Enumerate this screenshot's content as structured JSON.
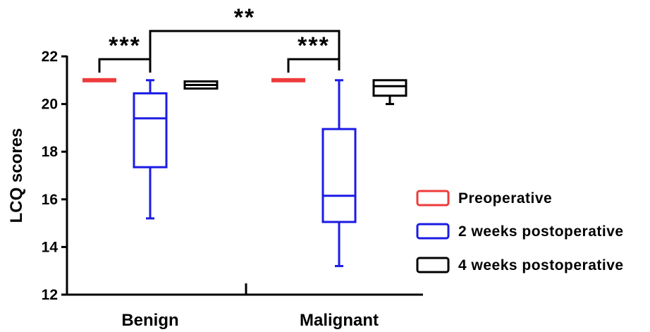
{
  "chart_data": {
    "type": "box",
    "ylabel": "LCQ scores",
    "ylim": [
      12,
      22
    ],
    "yticks": [
      "12",
      "14",
      "16",
      "18",
      "20",
      "22"
    ],
    "categories": [
      "Benign",
      "Malignant"
    ],
    "legend_position": "right",
    "series": [
      {
        "name": "Preoperative",
        "color": "#EE3B3B",
        "boxes": [
          {
            "category": "Benign",
            "min": 21,
            "q1": 21,
            "median": 21,
            "q3": 21,
            "max": 21
          },
          {
            "category": "Malignant",
            "min": 21,
            "q1": 21,
            "median": 21,
            "q3": 21,
            "max": 21
          }
        ]
      },
      {
        "name": "2 weeks postoperative",
        "color": "#1B1BE6",
        "boxes": [
          {
            "category": "Benign",
            "min": 15.2,
            "q1": 17.35,
            "median": 19.4,
            "q3": 20.45,
            "max": 21
          },
          {
            "category": "Malignant",
            "min": 13.2,
            "q1": 15.05,
            "median": 16.15,
            "q3": 18.95,
            "max": 21
          }
        ]
      },
      {
        "name": "4 weeks postoperative",
        "color": "#000000",
        "boxes": [
          {
            "category": "Benign",
            "min": 20.65,
            "q1": 20.65,
            "median": 20.8,
            "q3": 20.95,
            "max": 20.95
          },
          {
            "category": "Malignant",
            "min": 20,
            "q1": 20.35,
            "median": 20.75,
            "q3": 21,
            "max": 21
          }
        ]
      }
    ],
    "annotations": [
      {
        "label": "***",
        "from": "Benign - Preoperative",
        "to": "Benign - 2 weeks postoperative"
      },
      {
        "label": "***",
        "from": "Malignant - Preoperative",
        "to": "Malignant - 2 weeks postoperative"
      },
      {
        "label": "**",
        "from": "Benign - 2 weeks postoperative",
        "to": "Malignant - 2 weeks postoperative"
      }
    ]
  }
}
